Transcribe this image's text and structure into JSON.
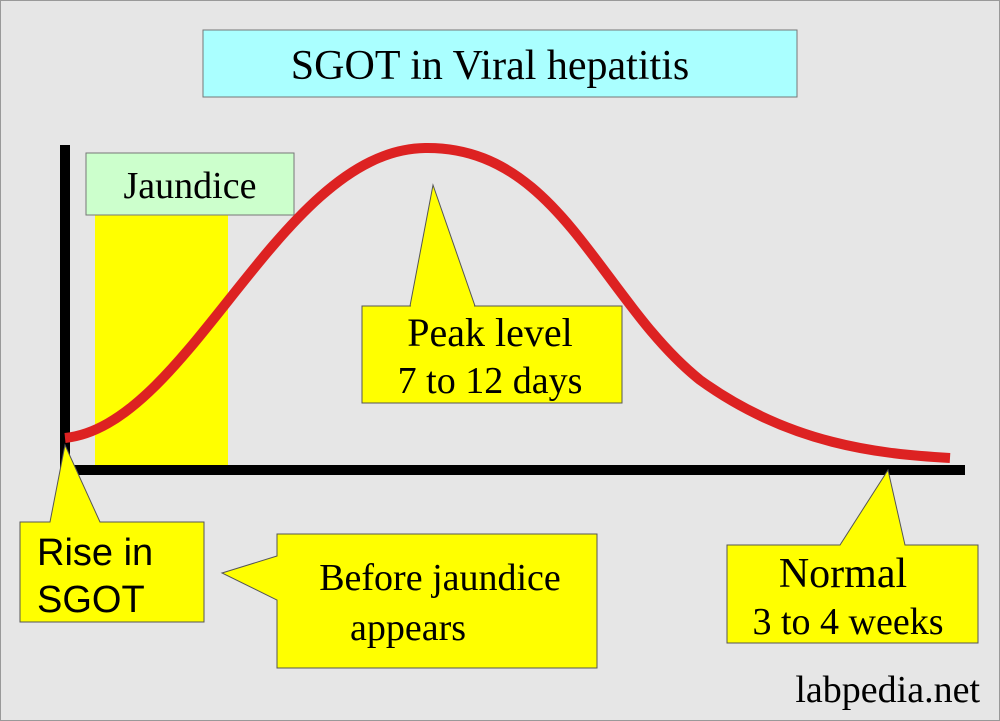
{
  "title": "SGOT in Viral hepatitis",
  "phase_label": "Jaundice",
  "callouts": [
    {
      "lines": [
        "Peak level",
        "7 to 12 days"
      ]
    },
    {
      "lines": [
        "Rise in",
        "SGOT"
      ]
    },
    {
      "lines": [
        "Before jaundice",
        "appears"
      ]
    },
    {
      "lines": [
        "Normal",
        "3 to 4 weeks"
      ]
    }
  ],
  "watermark": "labpedia.net"
}
